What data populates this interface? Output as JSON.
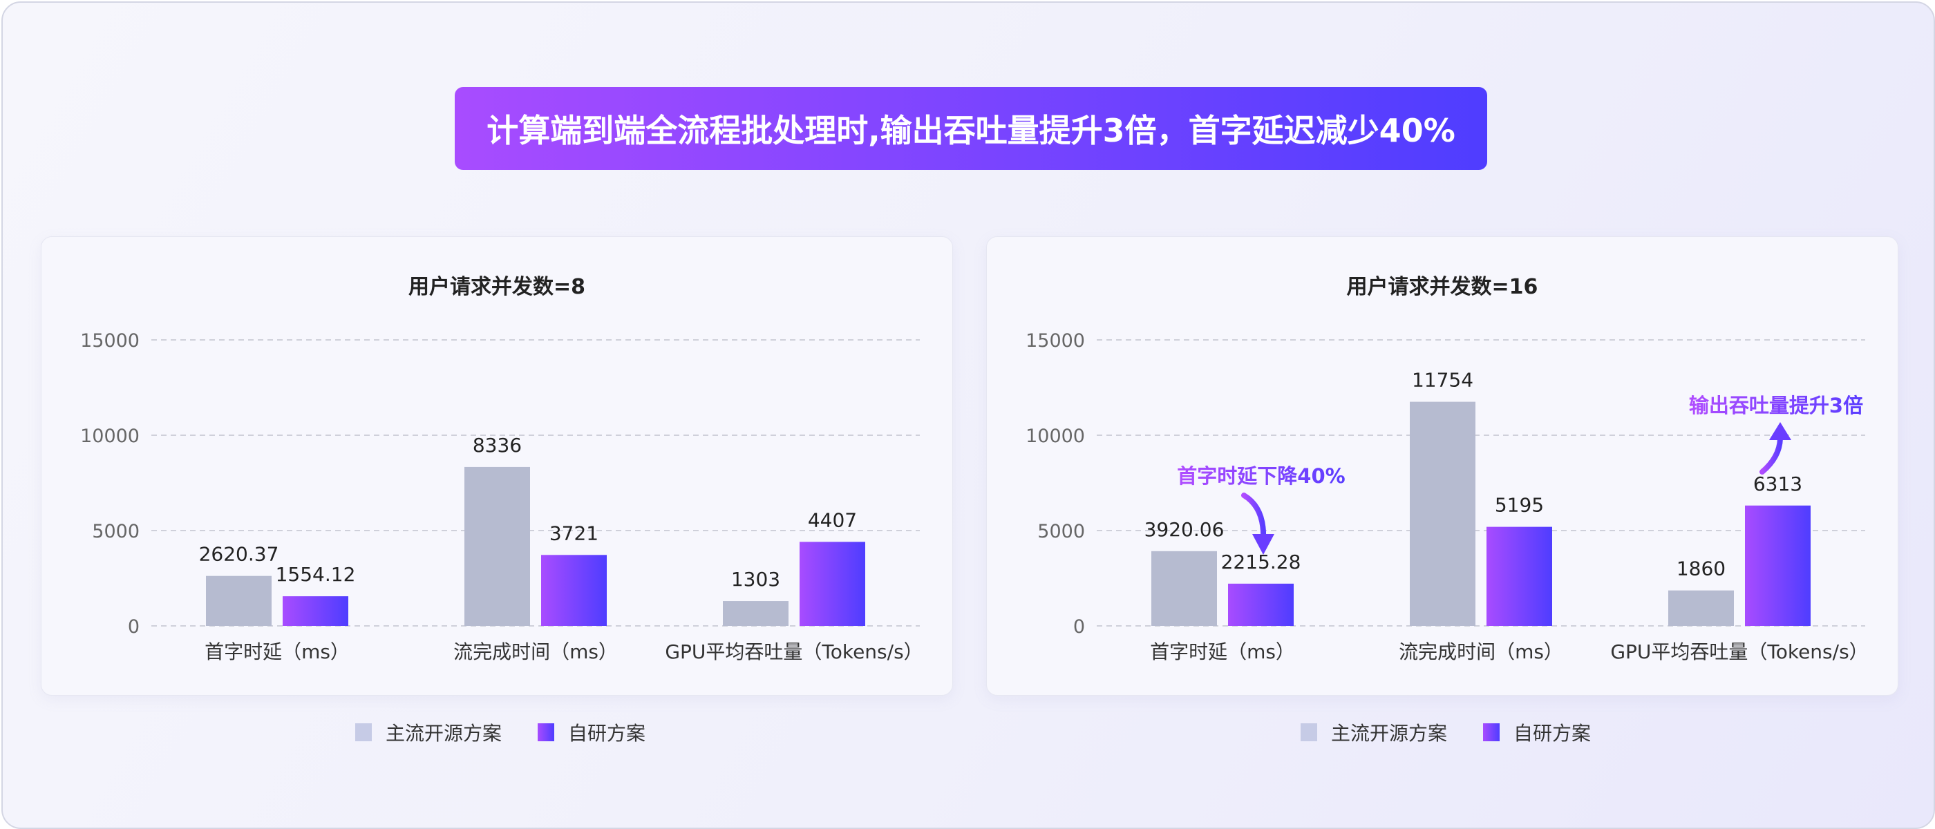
{
  "headline": "计算端到端全流程批处理时,输出吞吐量提升3倍，首字延迟减少40%",
  "legend": [
    "主流开源方案",
    "自研方案"
  ],
  "colors": {
    "baseline": "#b6bbd0",
    "ours_start": "#a84cff",
    "ours_end": "#4f3dff",
    "annotation": "#9b3dff"
  },
  "chart_data": [
    {
      "type": "bar",
      "title": "用户请求并发数=8",
      "categories": [
        "首字时延（ms）",
        "流完成时间（ms）",
        "GPU平均吞吐量（Tokens/s）"
      ],
      "series": [
        {
          "name": "主流开源方案",
          "values": [
            2620.37,
            8336,
            1303
          ],
          "labels": [
            "2620.37",
            "8336",
            "1303"
          ]
        },
        {
          "name": "自研方案",
          "values": [
            1554.12,
            3721,
            4407
          ],
          "labels": [
            "1554.12",
            "3721",
            "4407"
          ]
        }
      ],
      "ylim": [
        0,
        15000
      ],
      "yticks": [
        "0",
        "5000",
        "10000",
        "15000"
      ],
      "grid": true,
      "legend_position": "bottom",
      "annotations": []
    },
    {
      "type": "bar",
      "title": "用户请求并发数=16",
      "categories": [
        "首字时延（ms）",
        "流完成时间（ms）",
        "GPU平均吞吐量（Tokens/s）"
      ],
      "series": [
        {
          "name": "主流开源方案",
          "values": [
            3920.06,
            11754,
            1860
          ],
          "labels": [
            "3920.06",
            "11754",
            "1860"
          ]
        },
        {
          "name": "自研方案",
          "values": [
            2215.28,
            5195,
            6313
          ],
          "labels": [
            "2215.28",
            "5195",
            "6313"
          ]
        }
      ],
      "ylim": [
        0,
        15000
      ],
      "yticks": [
        "0",
        "5000",
        "10000",
        "15000"
      ],
      "grid": true,
      "legend_position": "bottom",
      "annotations": [
        {
          "text": "首字时延下降40%",
          "arrow": "down"
        },
        {
          "text": "输出吞吐量提升3倍",
          "arrow": "up"
        }
      ]
    }
  ]
}
